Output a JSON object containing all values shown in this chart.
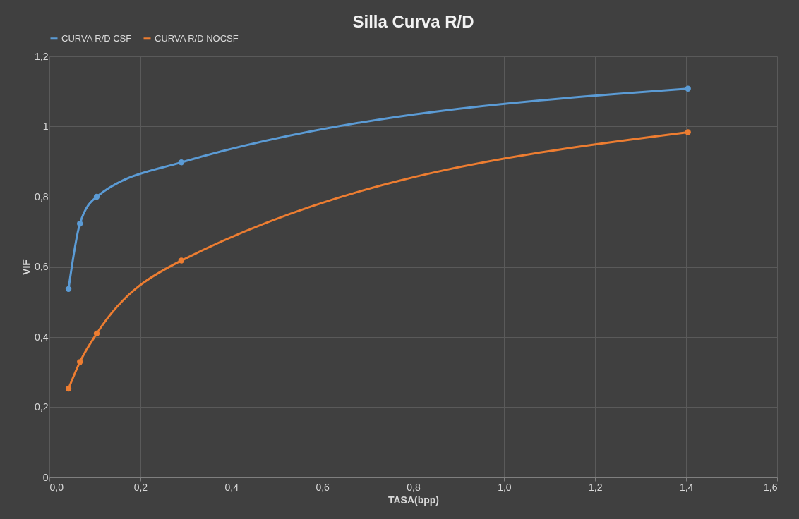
{
  "chart_data": {
    "type": "line",
    "title": "Silla Curva R/D",
    "xlabel": "TASA(bpp)",
    "ylabel": "VIF",
    "x": [
      0.042,
      0.067,
      0.104,
      0.29,
      1.404
    ],
    "series": [
      {
        "name": "CURVA R/D CSF",
        "color": "#5b9bd5",
        "values": [
          0.537,
          0.723,
          0.8,
          0.898,
          1.108
        ]
      },
      {
        "name": "CURVA R/D NOCSF",
        "color": "#ed7d31",
        "values": [
          0.253,
          0.329,
          0.41,
          0.618,
          0.984
        ]
      }
    ],
    "xlim": [
      0,
      1.6
    ],
    "xticks": [
      {
        "value": 0,
        "label": "0,0"
      },
      {
        "value": 0.2,
        "label": "0,2"
      },
      {
        "value": 0.4,
        "label": "0,4"
      },
      {
        "value": 0.6,
        "label": "0,6"
      },
      {
        "value": 0.8,
        "label": "0,8"
      },
      {
        "value": 1.0,
        "label": "1,0"
      },
      {
        "value": 1.2,
        "label": "1,2"
      },
      {
        "value": 1.4,
        "label": "1,4"
      },
      {
        "value": 1.6,
        "label": "1,6"
      }
    ],
    "ylim": [
      0,
      1.2
    ],
    "yticks": [
      0,
      {
        "value": 0.2,
        "label": "0,2"
      },
      {
        "value": 0.4,
        "label": "0,4"
      },
      {
        "value": 0.6,
        "label": "0,6"
      },
      {
        "value": 0.8,
        "label": "0,8"
      },
      1,
      {
        "value": 1.2,
        "label": "1,2"
      }
    ],
    "grid": true,
    "legend": "top",
    "marker": "circle",
    "line_style": "solid"
  }
}
